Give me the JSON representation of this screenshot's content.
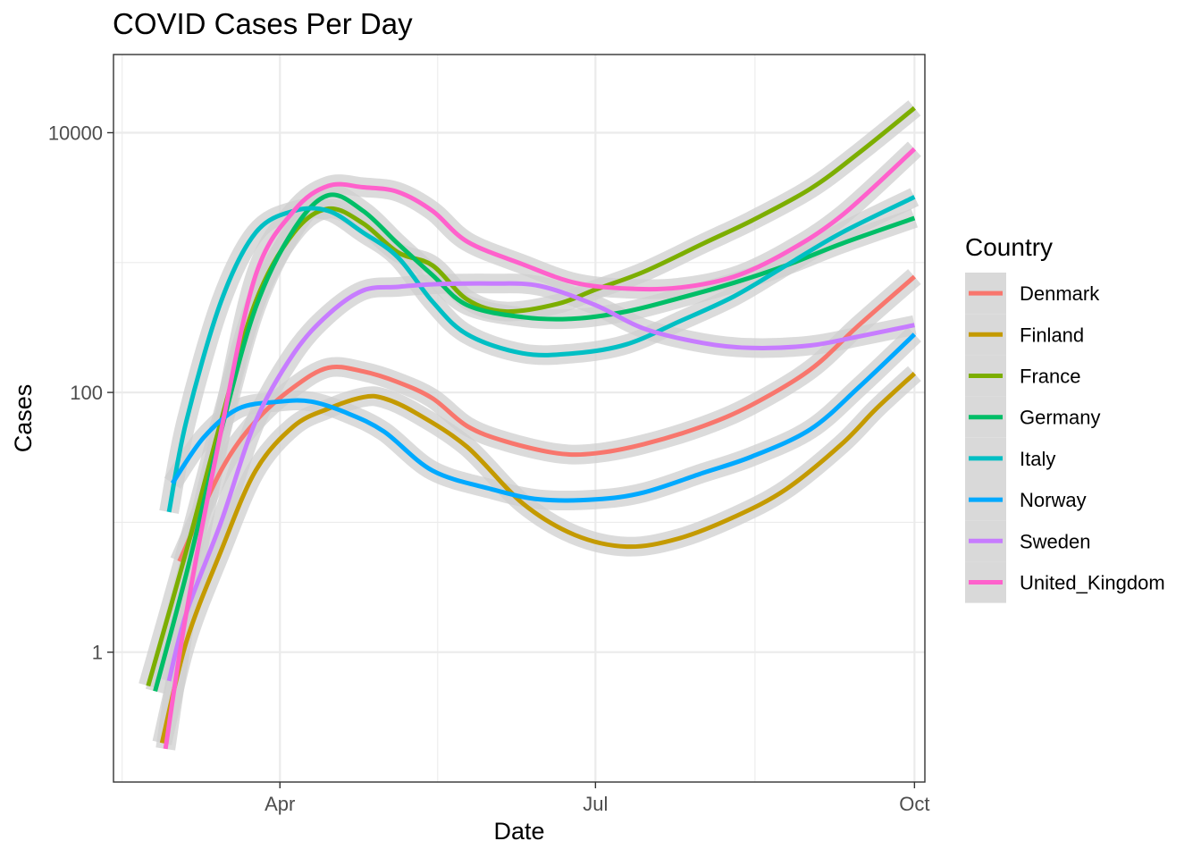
{
  "chart_data": {
    "type": "line",
    "title": "COVID Cases Per Day",
    "xlabel": "Date",
    "ylabel": "Cases",
    "x_scale": "date",
    "y_scale": "log10",
    "xlim": [
      "2020-02-13",
      "2020-10-04"
    ],
    "ylim": [
      0.1,
      40000
    ],
    "x_ticks": [
      {
        "value": "2020-04-01",
        "label": "Apr"
      },
      {
        "value": "2020-07-01",
        "label": "Jul"
      },
      {
        "value": "2020-10-01",
        "label": "Oct"
      }
    ],
    "y_ticks": [
      {
        "value": 1,
        "label": "1"
      },
      {
        "value": 100,
        "label": "100"
      },
      {
        "value": 10000,
        "label": "10000"
      }
    ],
    "grid": true,
    "confidence_band": true,
    "legend": {
      "title": "Country",
      "position": "right"
    },
    "series": [
      {
        "name": "Denmark",
        "color": "#F8766D",
        "points": [
          [
            "2020-03-03",
            5
          ],
          [
            "2020-03-15",
            25
          ],
          [
            "2020-03-25",
            60
          ],
          [
            "2020-04-05",
            110
          ],
          [
            "2020-04-15",
            155
          ],
          [
            "2020-04-25",
            145
          ],
          [
            "2020-05-05",
            120
          ],
          [
            "2020-05-15",
            90
          ],
          [
            "2020-05-25",
            55
          ],
          [
            "2020-06-05",
            42
          ],
          [
            "2020-06-20",
            34
          ],
          [
            "2020-07-01",
            34
          ],
          [
            "2020-07-15",
            40
          ],
          [
            "2020-08-01",
            55
          ],
          [
            "2020-08-15",
            80
          ],
          [
            "2020-09-01",
            150
          ],
          [
            "2020-09-15",
            330
          ],
          [
            "2020-10-01",
            780
          ]
        ]
      },
      {
        "name": "Finland",
        "color": "#C49A00",
        "points": [
          [
            "2020-02-27",
            0.2
          ],
          [
            "2020-03-05",
            1.2
          ],
          [
            "2020-03-15",
            6
          ],
          [
            "2020-03-25",
            25
          ],
          [
            "2020-04-05",
            55
          ],
          [
            "2020-04-15",
            75
          ],
          [
            "2020-04-25",
            92
          ],
          [
            "2020-05-01",
            90
          ],
          [
            "2020-05-10",
            70
          ],
          [
            "2020-05-25",
            38
          ],
          [
            "2020-06-10",
            14
          ],
          [
            "2020-06-25",
            8
          ],
          [
            "2020-07-10",
            6.5
          ],
          [
            "2020-07-25",
            7.5
          ],
          [
            "2020-08-10",
            11
          ],
          [
            "2020-08-25",
            18
          ],
          [
            "2020-09-10",
            40
          ],
          [
            "2020-09-20",
            75
          ],
          [
            "2020-10-01",
            140
          ]
        ]
      },
      {
        "name": "France",
        "color": "#7CAE00",
        "points": [
          [
            "2020-02-23",
            0.55
          ],
          [
            "2020-03-05",
            6
          ],
          [
            "2020-03-15",
            60
          ],
          [
            "2020-03-25",
            500
          ],
          [
            "2020-04-05",
            1700
          ],
          [
            "2020-04-15",
            2600
          ],
          [
            "2020-04-25",
            2000
          ],
          [
            "2020-05-05",
            1200
          ],
          [
            "2020-05-15",
            950
          ],
          [
            "2020-05-25",
            520
          ],
          [
            "2020-06-05",
            420
          ],
          [
            "2020-06-20",
            480
          ],
          [
            "2020-07-01",
            620
          ],
          [
            "2020-07-15",
            850
          ],
          [
            "2020-08-01",
            1400
          ],
          [
            "2020-08-15",
            2100
          ],
          [
            "2020-09-01",
            3700
          ],
          [
            "2020-09-15",
            7000
          ],
          [
            "2020-10-01",
            15500
          ]
        ]
      },
      {
        "name": "Germany",
        "color": "#00BE67",
        "points": [
          [
            "2020-02-25",
            0.5
          ],
          [
            "2020-03-05",
            4
          ],
          [
            "2020-03-15",
            50
          ],
          [
            "2020-03-25",
            450
          ],
          [
            "2020-04-05",
            1800
          ],
          [
            "2020-04-15",
            3300
          ],
          [
            "2020-04-25",
            2500
          ],
          [
            "2020-05-05",
            1400
          ],
          [
            "2020-05-15",
            800
          ],
          [
            "2020-05-25",
            470
          ],
          [
            "2020-06-10",
            380
          ],
          [
            "2020-06-25",
            370
          ],
          [
            "2020-07-10",
            420
          ],
          [
            "2020-07-25",
            530
          ],
          [
            "2020-08-10",
            700
          ],
          [
            "2020-08-25",
            950
          ],
          [
            "2020-09-10",
            1400
          ],
          [
            "2020-10-01",
            2200
          ]
        ]
      },
      {
        "name": "Italy",
        "color": "#00BFC4",
        "points": [
          [
            "2020-02-29",
            12
          ],
          [
            "2020-03-05",
            60
          ],
          [
            "2020-03-15",
            500
          ],
          [
            "2020-03-25",
            1700
          ],
          [
            "2020-04-05",
            2500
          ],
          [
            "2020-04-15",
            2500
          ],
          [
            "2020-04-25",
            1700
          ],
          [
            "2020-05-05",
            1100
          ],
          [
            "2020-05-15",
            500
          ],
          [
            "2020-05-25",
            280
          ],
          [
            "2020-06-10",
            200
          ],
          [
            "2020-06-25",
            200
          ],
          [
            "2020-07-10",
            235
          ],
          [
            "2020-07-25",
            350
          ],
          [
            "2020-08-10",
            550
          ],
          [
            "2020-08-25",
            950
          ],
          [
            "2020-09-10",
            1700
          ],
          [
            "2020-10-01",
            3200
          ]
        ]
      },
      {
        "name": "Norway",
        "color": "#00A9FF",
        "points": [
          [
            "2020-03-01",
            20
          ],
          [
            "2020-03-10",
            45
          ],
          [
            "2020-03-20",
            75
          ],
          [
            "2020-04-01",
            85
          ],
          [
            "2020-04-10",
            85
          ],
          [
            "2020-04-20",
            70
          ],
          [
            "2020-05-01",
            50
          ],
          [
            "2020-05-15",
            25
          ],
          [
            "2020-06-01",
            18
          ],
          [
            "2020-06-15",
            15
          ],
          [
            "2020-07-01",
            15
          ],
          [
            "2020-07-15",
            17
          ],
          [
            "2020-08-01",
            24
          ],
          [
            "2020-08-15",
            32
          ],
          [
            "2020-09-01",
            52
          ],
          [
            "2020-09-15",
            110
          ],
          [
            "2020-10-01",
            280
          ]
        ]
      },
      {
        "name": "Sweden",
        "color": "#C77CFF",
        "points": [
          [
            "2020-02-29",
            0.6
          ],
          [
            "2020-03-05",
            2
          ],
          [
            "2020-03-15",
            10
          ],
          [
            "2020-03-25",
            60
          ],
          [
            "2020-04-05",
            200
          ],
          [
            "2020-04-15",
            400
          ],
          [
            "2020-04-25",
            610
          ],
          [
            "2020-05-05",
            650
          ],
          [
            "2020-05-15",
            680
          ],
          [
            "2020-06-01",
            690
          ],
          [
            "2020-06-15",
            660
          ],
          [
            "2020-07-01",
            470
          ],
          [
            "2020-07-15",
            310
          ],
          [
            "2020-08-01",
            240
          ],
          [
            "2020-08-15",
            220
          ],
          [
            "2020-09-01",
            230
          ],
          [
            "2020-09-15",
            270
          ],
          [
            "2020-10-01",
            330
          ]
        ]
      },
      {
        "name": "United_Kingdom",
        "color": "#FF61CC",
        "points": [
          [
            "2020-02-28",
            0.18
          ],
          [
            "2020-03-05",
            2
          ],
          [
            "2020-03-15",
            50
          ],
          [
            "2020-03-25",
            800
          ],
          [
            "2020-04-05",
            2500
          ],
          [
            "2020-04-15",
            3900
          ],
          [
            "2020-04-25",
            3800
          ],
          [
            "2020-05-05",
            3500
          ],
          [
            "2020-05-15",
            2500
          ],
          [
            "2020-05-25",
            1450
          ],
          [
            "2020-06-10",
            970
          ],
          [
            "2020-06-25",
            700
          ],
          [
            "2020-07-10",
            630
          ],
          [
            "2020-07-25",
            640
          ],
          [
            "2020-08-10",
            780
          ],
          [
            "2020-08-25",
            1200
          ],
          [
            "2020-09-10",
            2300
          ],
          [
            "2020-10-01",
            7500
          ]
        ]
      }
    ]
  }
}
